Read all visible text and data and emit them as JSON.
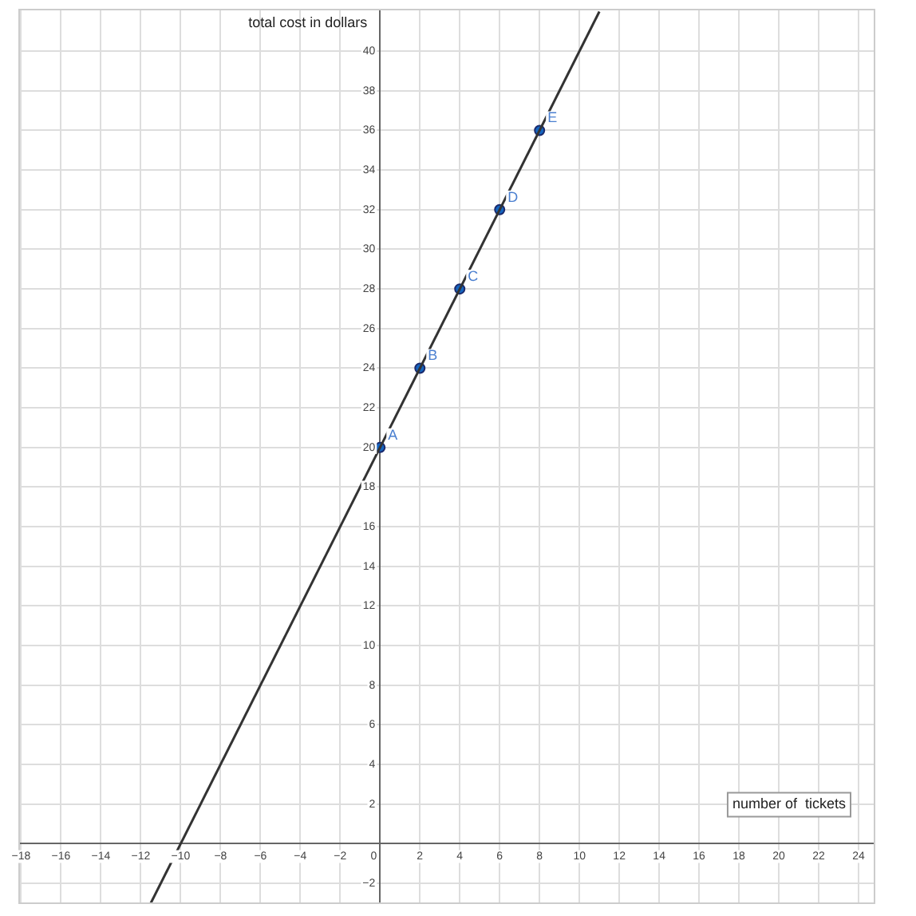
{
  "chart_data": {
    "type": "line",
    "xlabel": "number of  tickets",
    "ylabel": "total cost in dollars",
    "xlim": [
      -18.1,
      24.8
    ],
    "ylim": [
      -3,
      42.1
    ],
    "xticks": [
      -18,
      -16,
      -14,
      -12,
      -10,
      -8,
      -6,
      -4,
      -2,
      0,
      2,
      4,
      6,
      8,
      10,
      12,
      14,
      16,
      18,
      20,
      22,
      24
    ],
    "yticks": [
      -2,
      {
        "value": 0,
        "label": null
      },
      2,
      4,
      6,
      8,
      10,
      12,
      14,
      16,
      18,
      20,
      22,
      24,
      26,
      28,
      30,
      32,
      34,
      36,
      38,
      40
    ],
    "grid": true,
    "legend": false,
    "series": [
      {
        "type": "line",
        "color": "#333333",
        "x": [
          -11.5,
          11
        ],
        "values": [
          -3,
          42
        ],
        "marker": "none",
        "line_style": "solid"
      },
      {
        "type": "scatter",
        "color": "#1565c0",
        "x": [
          0,
          2,
          4,
          6,
          8
        ],
        "values": [
          20,
          24,
          28,
          32,
          36
        ],
        "marker": "circle"
      }
    ],
    "annotations": [
      {
        "text": "A",
        "x": 0,
        "y": 20
      },
      {
        "text": "B",
        "x": 2,
        "y": 24
      },
      {
        "text": "C",
        "x": 4,
        "y": 28
      },
      {
        "text": "D",
        "x": 6,
        "y": 32
      },
      {
        "text": "E",
        "x": 8,
        "y": 36
      }
    ]
  }
}
